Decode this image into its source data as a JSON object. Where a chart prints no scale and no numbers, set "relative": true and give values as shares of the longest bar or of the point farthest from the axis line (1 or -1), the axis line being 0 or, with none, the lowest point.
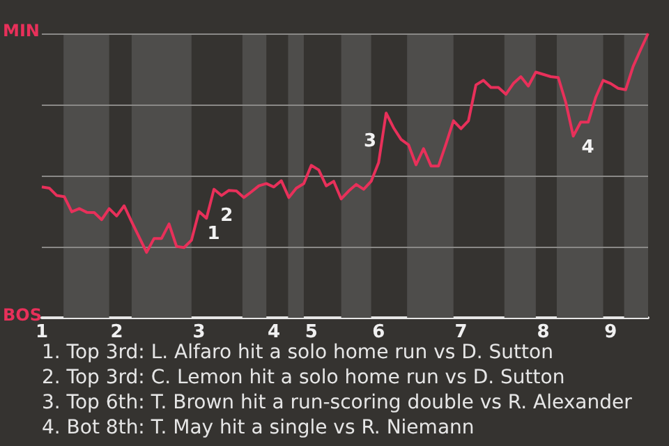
{
  "chart_data": {
    "type": "line",
    "relative": true,
    "categories": [
      "1",
      null,
      null,
      null,
      null,
      null,
      null,
      null,
      null,
      null,
      "2",
      null,
      null,
      null,
      null,
      null,
      null,
      null,
      null,
      null,
      null,
      "3",
      null,
      null,
      null,
      null,
      null,
      null,
      null,
      null,
      null,
      "4",
      null,
      null,
      null,
      null,
      "5",
      null,
      null,
      null,
      null,
      null,
      null,
      null,
      null,
      "6",
      null,
      null,
      null,
      null,
      null,
      null,
      null,
      null,
      null,
      null,
      "7",
      null,
      null,
      null,
      null,
      null,
      null,
      null,
      null,
      null,
      null,
      "8",
      null,
      null,
      null,
      null,
      null,
      null,
      null,
      null,
      "9",
      null,
      null,
      null,
      null,
      null
    ],
    "series": [
      {
        "color": "#e8305a",
        "values": [
          0.46,
          0.456,
          0.43,
          0.426,
          0.373,
          0.384,
          0.371,
          0.37,
          0.345,
          0.384,
          0.358,
          0.394,
          0.338,
          0.284,
          0.23,
          0.279,
          0.279,
          0.33,
          0.251,
          0.247,
          0.273,
          0.374,
          0.35,
          0.452,
          0.43,
          0.448,
          0.446,
          0.423,
          0.443,
          0.464,
          0.472,
          0.46,
          0.482,
          0.423,
          0.456,
          0.472,
          0.536,
          0.52,
          0.464,
          0.48,
          0.418,
          0.446,
          0.469,
          0.452,
          0.48,
          0.546,
          0.72,
          0.668,
          0.627,
          0.608,
          0.538,
          0.595,
          0.534,
          0.534,
          0.611,
          0.693,
          0.665,
          0.693,
          0.819,
          0.835,
          0.81,
          0.81,
          0.786,
          0.824,
          0.848,
          0.815,
          0.864,
          0.856,
          0.848,
          0.845,
          0.758,
          0.639,
          0.688,
          0.688,
          0.775,
          0.835,
          0.824,
          0.807,
          0.802,
          0.884,
          0.943,
          1
        ]
      }
    ],
    "ref_lines": [
      {
        "axis": "y",
        "value": 0.25,
        "color": "#8a8987"
      },
      {
        "axis": "y",
        "value": 0.5,
        "color": "#8a8987"
      },
      {
        "axis": "y",
        "value": 0.75,
        "color": "#8a8987"
      },
      {
        "axis": "y",
        "value": 1,
        "color": "#8a8987"
      }
    ],
    "annotations": [
      "MIN",
      "BOS",
      "1",
      "2",
      "3",
      "4",
      "1. Top 3rd: L. Alfaro hit a solo home run vs D. Sutton",
      "2. Top 3rd: C. Lemon hit a solo home run vs D. Sutton",
      "3. Top 6th: T. Brown hit a run-scoring double vs R. Alexander",
      "4. Bot 8th: T. May hit a single vs R. Niemann"
    ]
  }
}
